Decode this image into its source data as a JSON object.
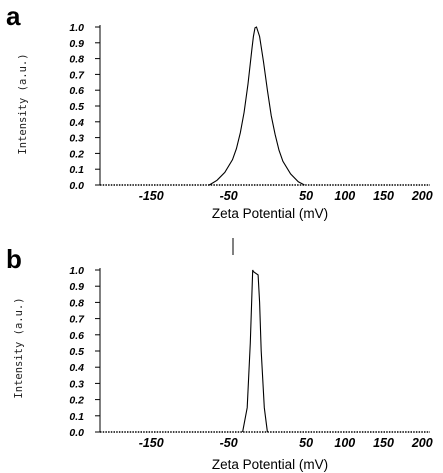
{
  "chart_data": [
    {
      "type": "line",
      "panel_label": "a",
      "xlabel": "Zeta Potential (mV)",
      "ylabel": "Intensity (a.u.)",
      "xlim": [
        -220,
        210
      ],
      "ylim": [
        0,
        1.0
      ],
      "x_ticks": [
        -150,
        -50,
        50,
        100,
        150,
        200
      ],
      "x_tick_labels": [
        "-150",
        "-50",
        "50",
        "100",
        "150",
        "200"
      ],
      "y_ticks": [
        0,
        0.1,
        0.2,
        0.3,
        0.4,
        0.5,
        0.6,
        0.7,
        0.8,
        0.9,
        1.0
      ],
      "y_tick_labels": [
        "0.0",
        "0.1",
        "0.2",
        "0.3",
        "0.4",
        "0.5",
        "0.6",
        "0.7",
        "0.8",
        "0.9",
        "1.0"
      ],
      "grid": false,
      "series": [
        {
          "x": [
            -75,
            -65,
            -55,
            -45,
            -40,
            -35,
            -30,
            -25,
            -20,
            -18,
            -16,
            -14,
            -10,
            -5,
            0,
            5,
            10,
            15,
            20,
            30,
            40,
            48
          ],
          "y": [
            0.0,
            0.03,
            0.08,
            0.16,
            0.23,
            0.33,
            0.46,
            0.64,
            0.86,
            0.94,
            0.995,
            1.0,
            0.94,
            0.78,
            0.6,
            0.44,
            0.32,
            0.22,
            0.15,
            0.07,
            0.02,
            0.0
          ]
        }
      ]
    },
    {
      "type": "line",
      "panel_label": "b",
      "xlabel": "Zeta Potential (mV)",
      "ylabel": "Intensity (a.u.)",
      "xlim": [
        -220,
        210
      ],
      "ylim": [
        0,
        1.0
      ],
      "x_ticks": [
        -150,
        -50,
        50,
        100,
        150,
        200
      ],
      "x_tick_labels": [
        "-150",
        "-50",
        "50",
        "100",
        "150",
        "200"
      ],
      "y_ticks": [
        0,
        0.1,
        0.2,
        0.3,
        0.4,
        0.5,
        0.6,
        0.7,
        0.8,
        0.9,
        1.0
      ],
      "y_tick_labels": [
        "0.0",
        "0.1",
        "0.2",
        "0.3",
        "0.4",
        "0.5",
        "0.6",
        "0.7",
        "0.8",
        "0.9",
        "1.0"
      ],
      "grid": false,
      "series": [
        {
          "x": [
            -32,
            -26,
            -22,
            -20,
            -19,
            -18,
            -12,
            -10,
            -8,
            -4,
            0
          ],
          "y": [
            0.0,
            0.15,
            0.55,
            0.85,
            1.0,
            0.99,
            0.97,
            0.8,
            0.5,
            0.15,
            0.0
          ]
        }
      ]
    }
  ]
}
